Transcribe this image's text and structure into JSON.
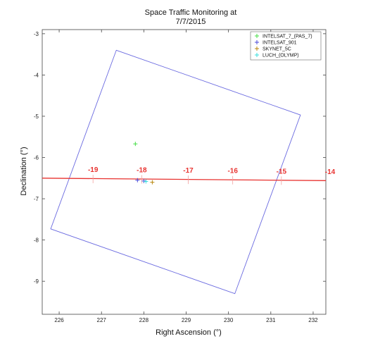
{
  "chart_data": {
    "type": "scatter",
    "title_line1": "Space Traffic Monitoring at",
    "title_line2": "7/7/2015",
    "xlabel": "Right Ascension (°)",
    "ylabel": "Declination (°)",
    "xlim": [
      225.6,
      232.3
    ],
    "ylim": [
      -9.8,
      -2.9
    ],
    "x_ticks": [
      226,
      227,
      228,
      229,
      230,
      231,
      232
    ],
    "y_ticks": [
      -3,
      -4,
      -5,
      -6,
      -7,
      -8,
      -9
    ],
    "x_tick_labels": [
      "226",
      "227",
      "228",
      "229",
      "230",
      "231",
      "232"
    ],
    "y_tick_labels": [
      "-3",
      "-4",
      "-5",
      "-6",
      "-7",
      "-8",
      "-9"
    ],
    "grid": false,
    "legend_position": "top-right",
    "field_of_view": {
      "color": "#6a6ae0",
      "corners": [
        [
          227.35,
          -3.4
        ],
        [
          231.7,
          -4.97
        ],
        [
          230.15,
          -9.3
        ],
        [
          225.8,
          -7.73
        ]
      ]
    },
    "series": [
      {
        "name": "INTELSAT_7_(PAS_7)",
        "color": "#44dd44",
        "points": [
          [
            227.8,
            -5.67
          ]
        ]
      },
      {
        "name": "INTELSAT_901",
        "color": "#4a4ad8",
        "points": [
          [
            227.85,
            -6.55
          ],
          [
            228.0,
            -6.57
          ]
        ]
      },
      {
        "name": "SKYNET_5C",
        "color": "#b8860b",
        "points": [
          [
            228.2,
            -6.6
          ]
        ]
      },
      {
        "name": "LUCH_(OLYMP)",
        "color": "#33dddd",
        "points": [
          [
            228.05,
            -6.58
          ]
        ]
      }
    ],
    "track": {
      "color": "#e8322f",
      "start": [
        225.5,
        -6.5
      ],
      "end": [
        232.3,
        -6.56
      ],
      "hour_marks": [
        {
          "label": "-19",
          "x": 226.8,
          "y": -6.52
        },
        {
          "label": "-18",
          "x": 227.95,
          "y": -6.53
        },
        {
          "label": "-17",
          "x": 229.05,
          "y": -6.54
        },
        {
          "label": "-16",
          "x": 230.1,
          "y": -6.55
        },
        {
          "label": "-15",
          "x": 231.25,
          "y": -6.56
        },
        {
          "label": "-14",
          "x": 232.4,
          "y": -6.57
        }
      ]
    }
  }
}
